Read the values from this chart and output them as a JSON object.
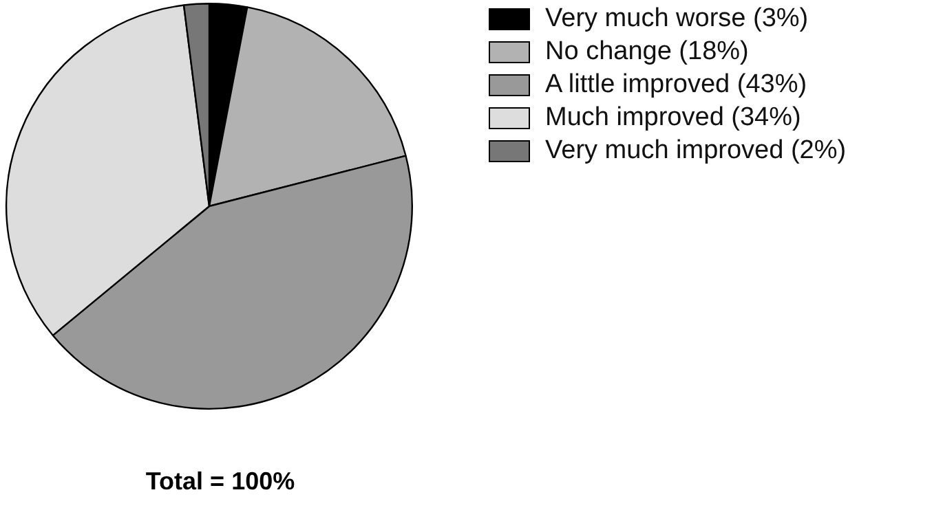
{
  "chart_data": {
    "type": "pie",
    "categories": [
      "Very much worse (3%)",
      "No change (18%)",
      "A little improved (43%)",
      "Much improved (34%)",
      "Very much improved (2%)"
    ],
    "values": [
      3,
      18,
      43,
      34,
      2
    ],
    "colors": [
      "#000000",
      "#b2b2b2",
      "#999999",
      "#dddddd",
      "#777777"
    ],
    "legend": "top right",
    "annotations": [
      "Total = 100%"
    ]
  }
}
